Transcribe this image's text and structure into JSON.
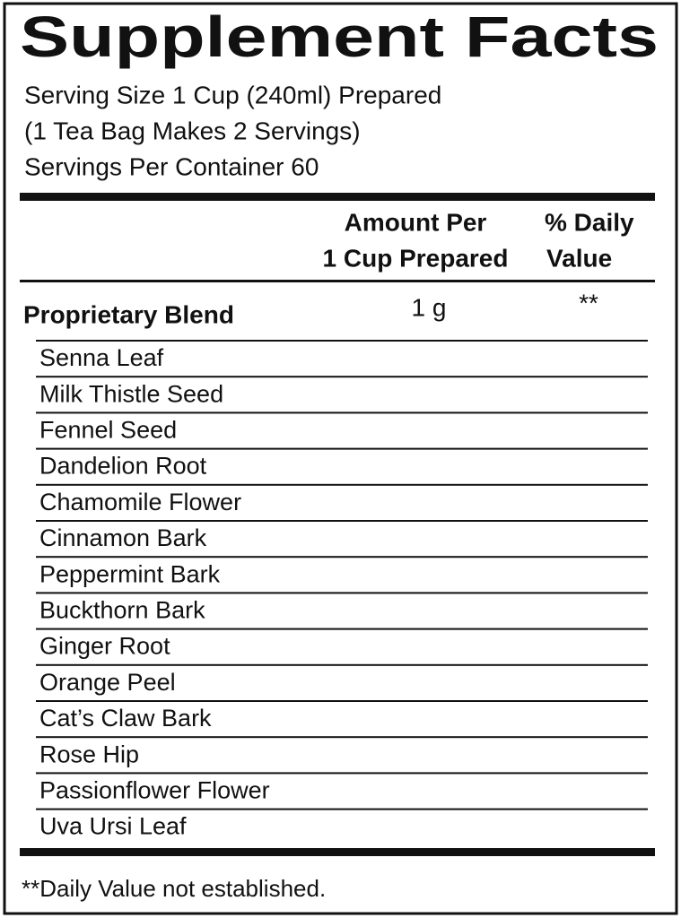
{
  "header": {
    "title": "Supplement Facts",
    "serving_lines": [
      "Serving Size 1 Cup (240ml) Prepared",
      "(1 Tea Bag Makes 2 Servings)",
      "Servings Per Container 60"
    ]
  },
  "columns": {
    "amount": [
      "Amount Per",
      "1 Cup Prepared"
    ],
    "daily_value": [
      "% Daily",
      "Value"
    ]
  },
  "blend": {
    "name": "Proprietary Blend",
    "amount": "1 g",
    "daily_value": "**"
  },
  "ingredients": [
    "Senna Leaf",
    "Milk Thistle Seed",
    "Fennel Seed",
    "Dandelion Root",
    "Chamomile Flower",
    "Cinnamon Bark",
    "Peppermint Bark",
    "Buckthorn Bark",
    "Ginger Root",
    "Orange Peel",
    "Cat’s Claw Bark",
    "Rose Hip",
    "Passionflower Flower",
    "Uva Ursi Leaf"
  ],
  "footnote": "**Daily Value not established."
}
